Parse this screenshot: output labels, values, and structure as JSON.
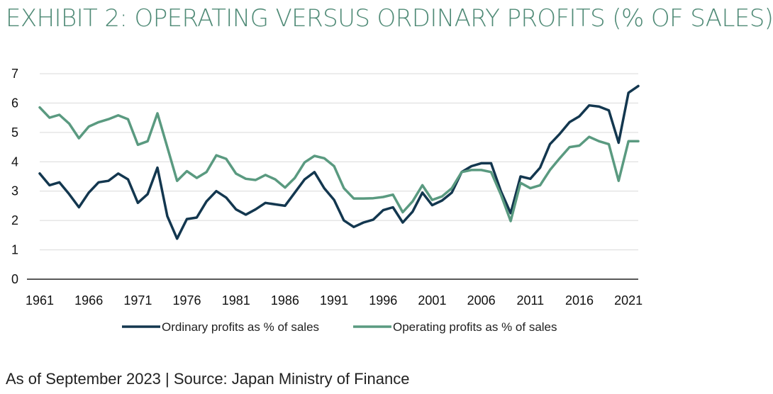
{
  "title": "EXHIBIT 2: OPERATING VERSUS ORDINARY PROFITS (% OF SALES)",
  "source": "As of September 2023 | Source: Japan Ministry of Finance",
  "colors": {
    "ordinary": "#13374f",
    "operating": "#5a9a80",
    "title": "#4f8a76",
    "grid": "#d9d9d9",
    "axis": "#222222"
  },
  "chart_data": {
    "type": "line",
    "title": "EXHIBIT 2: OPERATING VERSUS ORDINARY PROFITS (% OF SALES)",
    "xlabel": "",
    "ylabel": "",
    "xlim": [
      1961,
      2022
    ],
    "ylim": [
      0,
      7
    ],
    "yticks": [
      "0",
      "1",
      "2",
      "3",
      "4",
      "5",
      "6",
      "7"
    ],
    "xticks": [
      "1961",
      "1966",
      "1971",
      "1976",
      "1981",
      "1986",
      "1991",
      "1996",
      "2001",
      "2006",
      "2011",
      "2016",
      "2021"
    ],
    "grid": "horizontal",
    "legend": "bottom",
    "x": [
      1961,
      1962,
      1963,
      1964,
      1965,
      1966,
      1967,
      1968,
      1969,
      1970,
      1971,
      1972,
      1973,
      1974,
      1975,
      1976,
      1977,
      1978,
      1979,
      1980,
      1981,
      1982,
      1983,
      1984,
      1985,
      1986,
      1987,
      1988,
      1989,
      1990,
      1991,
      1992,
      1993,
      1994,
      1995,
      1996,
      1997,
      1998,
      1999,
      2000,
      2001,
      2002,
      2003,
      2004,
      2005,
      2006,
      2007,
      2008,
      2009,
      2010,
      2011,
      2012,
      2013,
      2014,
      2015,
      2016,
      2017,
      2018,
      2019,
      2020,
      2021,
      2022
    ],
    "series": [
      {
        "name": "Ordinary profits as % of sales",
        "color": "#13374f",
        "values": [
          3.6,
          3.2,
          3.3,
          2.9,
          2.45,
          2.95,
          3.3,
          3.35,
          3.6,
          3.4,
          2.6,
          2.9,
          3.8,
          2.15,
          1.38,
          2.05,
          2.1,
          2.65,
          3.0,
          2.78,
          2.38,
          2.2,
          2.38,
          2.6,
          2.55,
          2.5,
          2.95,
          3.4,
          3.65,
          3.1,
          2.7,
          2.0,
          1.78,
          1.93,
          2.03,
          2.35,
          2.45,
          1.93,
          2.3,
          2.95,
          2.52,
          2.68,
          2.95,
          3.65,
          3.85,
          3.95,
          3.95,
          3.0,
          2.25,
          3.5,
          3.42,
          3.8,
          4.6,
          4.95,
          5.35,
          5.55,
          5.92,
          5.88,
          5.75,
          4.65,
          6.35,
          6.58
        ]
      },
      {
        "name": "Operating profits as % of sales",
        "color": "#5a9a80",
        "values": [
          5.85,
          5.5,
          5.6,
          5.3,
          4.8,
          5.2,
          5.35,
          5.45,
          5.58,
          5.45,
          4.58,
          4.7,
          5.65,
          4.5,
          3.35,
          3.68,
          3.45,
          3.65,
          4.22,
          4.1,
          3.6,
          3.42,
          3.38,
          3.55,
          3.4,
          3.12,
          3.45,
          3.98,
          4.2,
          4.12,
          3.85,
          3.1,
          2.75,
          2.75,
          2.76,
          2.8,
          2.88,
          2.28,
          2.65,
          3.2,
          2.7,
          2.82,
          3.1,
          3.65,
          3.72,
          3.72,
          3.65,
          2.88,
          1.98,
          3.28,
          3.1,
          3.2,
          3.72,
          4.12,
          4.5,
          4.55,
          4.85,
          4.7,
          4.6,
          3.35,
          4.7,
          4.7
        ]
      }
    ]
  }
}
